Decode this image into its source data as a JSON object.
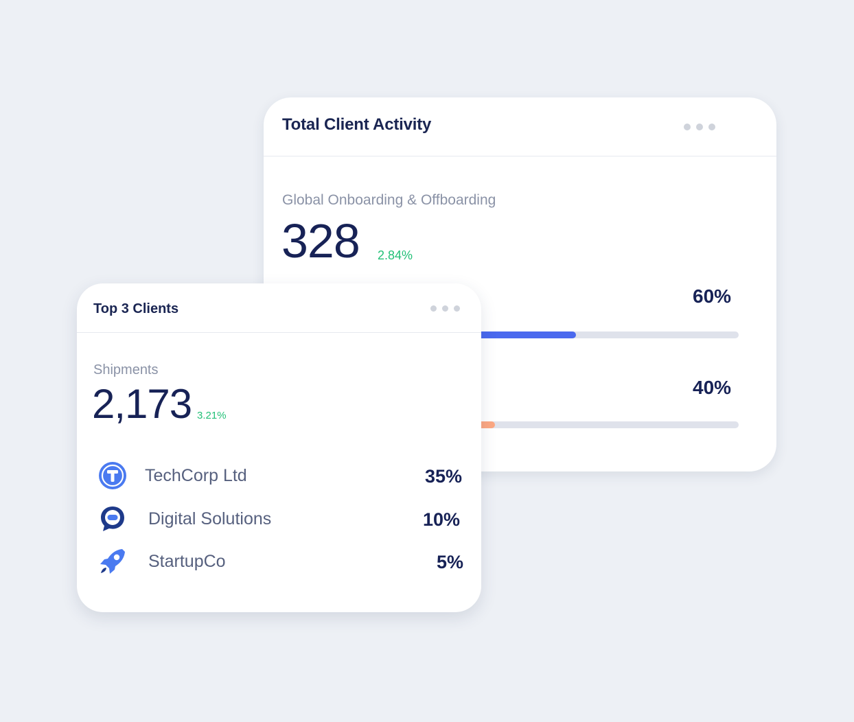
{
  "activity": {
    "title": "Total Client Activity",
    "metric_label": "Global Onboarding & Offboarding",
    "metric_value": "328",
    "metric_change": "2.84%",
    "bars": [
      {
        "percent_label": "60%",
        "fill_fraction": 0.6,
        "color": "#4a69ee"
      },
      {
        "percent_label": "40%",
        "fill_fraction": 0.4,
        "color": "#fca883"
      }
    ]
  },
  "top_clients": {
    "title": "Top 3 Clients",
    "metric_label": "Shipments",
    "metric_value": "2,173",
    "metric_change": "3.21%",
    "clients": [
      {
        "name": "TechCorp Ltd",
        "percent": "35%",
        "icon": "techcorp-logo-icon"
      },
      {
        "name": "Digital Solutions",
        "percent": "10%",
        "icon": "chat-bubble-logo-icon"
      },
      {
        "name": "StartupCo",
        "percent": "5%",
        "icon": "rocket-logo-icon"
      }
    ]
  },
  "colors": {
    "background": "#edf0f5",
    "primary_text": "#172256",
    "positive_change": "#22c077",
    "accent_blue": "#4a69ee",
    "accent_orange": "#fca883"
  }
}
